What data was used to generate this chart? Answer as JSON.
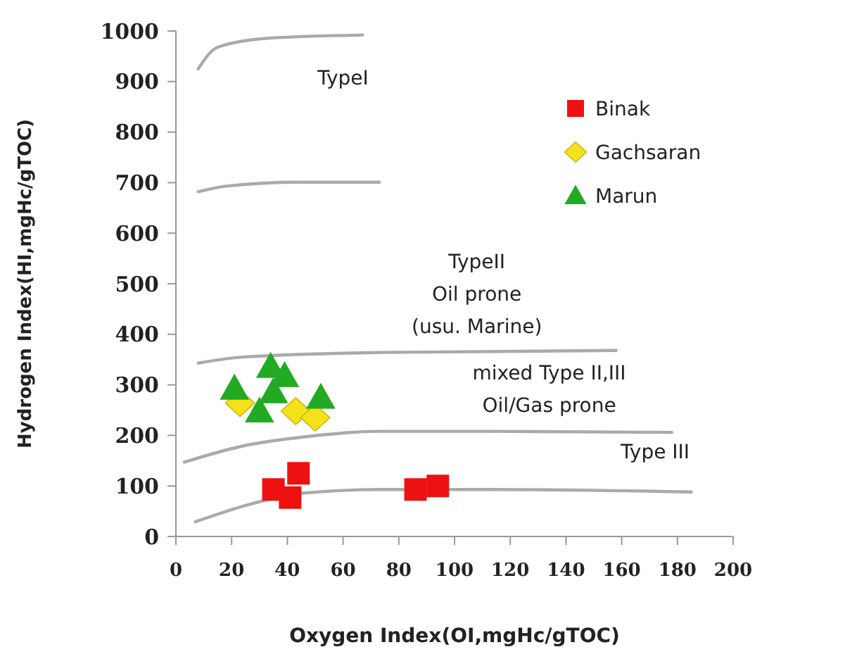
{
  "chart_data": {
    "type": "scatter",
    "xlabel": "Oxygen Index(OI,mgHc/gTOC)",
    "ylabel": "Hydrogen Index(HI,mgHc/gTOC)",
    "xlim": [
      0,
      200
    ],
    "ylim": [
      0,
      1000
    ],
    "xticks": [
      0,
      20,
      40,
      60,
      80,
      100,
      120,
      140,
      160,
      180,
      200
    ],
    "yticks": [
      0,
      100,
      200,
      300,
      400,
      500,
      600,
      700,
      800,
      900,
      1000
    ],
    "legend": "top right",
    "grid": false,
    "annotations": [
      "TypeI",
      "TypeII\nOil prone\n(usu. Marine)",
      "mixed Type II,III\nOil/Gas prone",
      "Type III"
    ],
    "series": [
      {
        "type": "line",
        "color": "#aaaaaa",
        "marker": "none",
        "x": [
          8,
          15,
          34,
          67
        ],
        "values": [
          925,
          968,
          986,
          992
        ]
      },
      {
        "type": "line",
        "color": "#aaaaaa",
        "marker": "none",
        "x": [
          8,
          18,
          44,
          73
        ],
        "values": [
          682,
          693,
          701,
          701
        ]
      },
      {
        "type": "line",
        "color": "#aaaaaa",
        "marker": "none",
        "x": [
          8,
          24,
          73,
          158
        ],
        "values": [
          343,
          355,
          364,
          368
        ]
      },
      {
        "type": "line",
        "color": "#aaaaaa",
        "marker": "none",
        "x": [
          3,
          24,
          46,
          73,
          112,
          178
        ],
        "values": [
          147,
          179,
          197,
          208,
          208,
          206
        ]
      },
      {
        "type": "line",
        "color": "#aaaaaa",
        "marker": "none",
        "x": [
          7,
          28,
          46,
          73,
          112,
          185
        ],
        "values": [
          29,
          66,
          86,
          93,
          93,
          88
        ]
      },
      {
        "name": "Binak",
        "color": "#ee1111",
        "marker": "square",
        "x": [
          35,
          44,
          41,
          86,
          94
        ],
        "values": [
          93,
          125,
          77,
          93,
          100
        ]
      },
      {
        "name": "Gachsaran",
        "color": "#f5e11a",
        "marker": "diamond",
        "x": [
          23,
          43,
          50
        ],
        "values": [
          264,
          248,
          235
        ]
      },
      {
        "name": "Marun",
        "color": "#22aa22",
        "marker": "triangle",
        "x": [
          21,
          34,
          39,
          35,
          30,
          52
        ],
        "values": [
          293,
          336,
          318,
          286,
          248,
          275
        ]
      }
    ]
  }
}
